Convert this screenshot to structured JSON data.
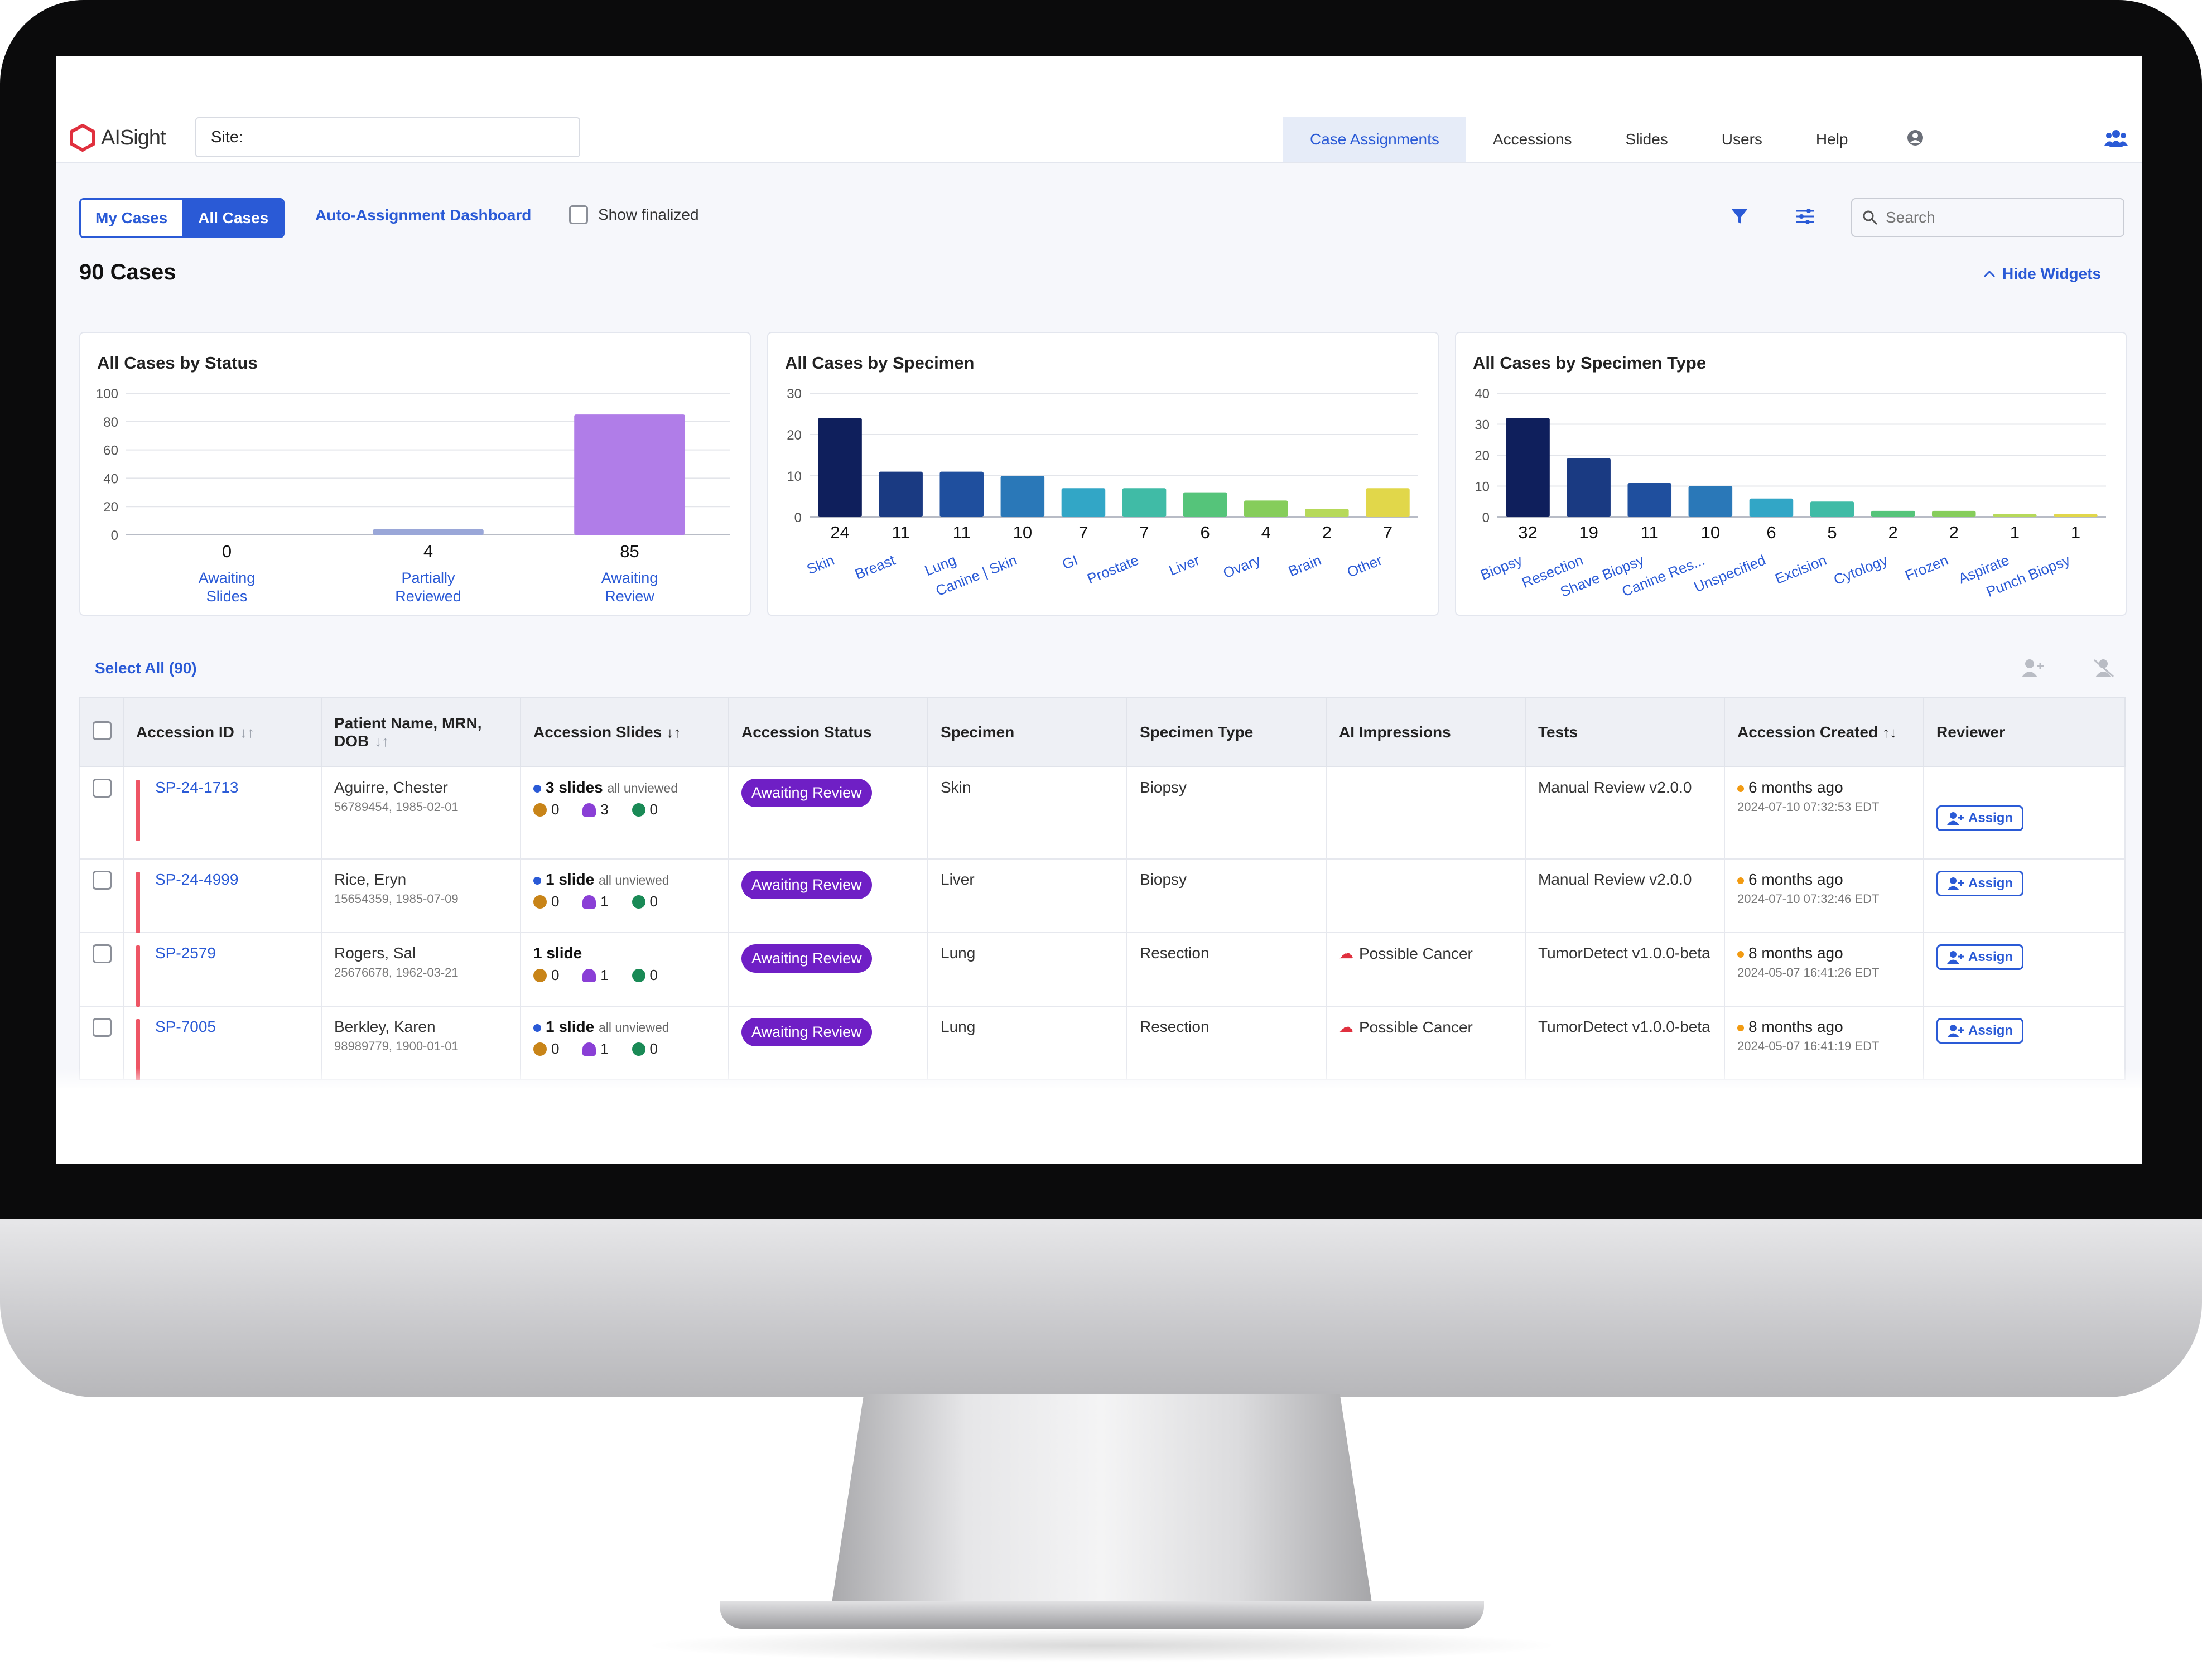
{
  "app": {
    "logo_text": "AISight",
    "site_label": "Site:",
    "nav": [
      "Case Assignments",
      "Accessions",
      "Slides",
      "Users",
      "Help"
    ],
    "accent": "#2a5ad6",
    "brand_red": "#e0303e"
  },
  "toolbar": {
    "my_cases": "My Cases",
    "all_cases": "All Cases",
    "auto_dashboard": "Auto-Assignment Dashboard",
    "show_finalized": "Show finalized",
    "search_placeholder": "Search",
    "filter_icon": "filter-icon",
    "columns_icon": "sliders-icon"
  },
  "summary": {
    "case_count": "90 Cases",
    "hide_widgets": "Hide Widgets"
  },
  "chart_data": [
    {
      "type": "bar",
      "title": "All Cases by Status",
      "categories": [
        "Awaiting Slides",
        "Partially Reviewed",
        "Awaiting Review"
      ],
      "values": [
        0,
        4,
        85
      ],
      "ylim": [
        0,
        100
      ],
      "yticks": [
        0,
        20,
        40,
        60,
        80,
        100
      ],
      "colors": [
        "#b07de8",
        "#9aa7d8",
        "#b07de8"
      ],
      "grid": true
    },
    {
      "type": "bar",
      "title": "All Cases by Specimen",
      "categories": [
        "Skin",
        "Breast",
        "Lung",
        "Canine | Skin",
        "GI",
        "Prostate",
        "Liver",
        "Ovary",
        "Brain",
        "Other"
      ],
      "values": [
        24,
        11,
        11,
        10,
        7,
        7,
        6,
        4,
        2,
        7
      ],
      "ylim": [
        0,
        30
      ],
      "yticks": [
        0,
        10,
        20,
        30
      ],
      "colors": [
        "#0f1f5c",
        "#1a3a82",
        "#1f4f9e",
        "#2a78b8",
        "#32a6c6",
        "#40bba6",
        "#55c47a",
        "#86cd5b",
        "#b6d95a",
        "#e1d74a"
      ],
      "grid": true
    },
    {
      "type": "bar",
      "title": "All Cases by Specimen Type",
      "categories": [
        "Biopsy",
        "Resection",
        "Shave Biopsy",
        "Canine Res...",
        "Unspecified",
        "Excision",
        "Cytology",
        "Frozen",
        "Aspirate",
        "Punch Biopsy"
      ],
      "values": [
        32,
        19,
        11,
        10,
        6,
        5,
        2,
        2,
        1,
        1
      ],
      "ylim": [
        0,
        40
      ],
      "yticks": [
        0,
        10,
        20,
        30,
        40
      ],
      "colors": [
        "#0f1f5c",
        "#1a3a82",
        "#1f4f9e",
        "#2a78b8",
        "#32a6c6",
        "#40bba6",
        "#55c47a",
        "#86cd5b",
        "#b6d95a",
        "#e1d74a"
      ],
      "grid": true
    }
  ],
  "table": {
    "select_all": "Select All (90)",
    "columns": [
      "Accession ID",
      "Patient Name, MRN, DOB",
      "Accession Slides",
      "Accession Status",
      "Specimen",
      "Specimen Type",
      "AI Impressions",
      "Tests",
      "Accession Created",
      "Reviewer"
    ],
    "rows": [
      {
        "id": "SP-24-1713",
        "patient": "Aguirre, Chester",
        "mrn_dob": "56789454, 1985-02-01",
        "slides": "3 slides",
        "unviewed": "all unviewed",
        "m1": "0",
        "m2": "3",
        "m3": "0",
        "status": "Awaiting Review",
        "specimen": "Skin",
        "specimen_type": "Biopsy",
        "ai": "",
        "tests": "Manual Review v2.0.0",
        "created_rel": "6 months ago",
        "created_abs": "2024-07-10 07:32:53 EDT",
        "reviewer": "Assign"
      },
      {
        "id": "SP-24-4999",
        "patient": "Rice, Eryn",
        "mrn_dob": "15654359, 1985-07-09",
        "slides": "1 slide",
        "unviewed": "all unviewed",
        "m1": "0",
        "m2": "1",
        "m3": "0",
        "status": "Awaiting Review",
        "specimen": "Liver",
        "specimen_type": "Biopsy",
        "ai": "",
        "tests": "Manual Review v2.0.0",
        "created_rel": "6 months ago",
        "created_abs": "2024-07-10 07:32:46 EDT",
        "reviewer": "Assign"
      },
      {
        "id": "SP-2579",
        "patient": "Rogers, Sal",
        "mrn_dob": "25676678, 1962-03-21",
        "slides": "1 slide",
        "unviewed": "",
        "m1": "0",
        "m2": "1",
        "m3": "0",
        "status": "Awaiting Review",
        "specimen": "Lung",
        "specimen_type": "Resection",
        "ai": "Possible Cancer",
        "tests": "TumorDetect v1.0.0-beta",
        "created_rel": "8 months ago",
        "created_abs": "2024-05-07 16:41:26 EDT",
        "reviewer": "Assign"
      },
      {
        "id": "SP-7005",
        "patient": "Berkley, Karen",
        "mrn_dob": "98989779, 1900-01-01",
        "slides": "1 slide",
        "unviewed": "all unviewed",
        "m1": "0",
        "m2": "1",
        "m3": "0",
        "status": "Awaiting Review",
        "specimen": "Lung",
        "specimen_type": "Resection",
        "ai": "Possible Cancer",
        "tests": "TumorDetect v1.0.0-beta",
        "created_rel": "8 months ago",
        "created_abs": "2024-05-07 16:41:19 EDT",
        "reviewer": "Assign"
      }
    ]
  }
}
